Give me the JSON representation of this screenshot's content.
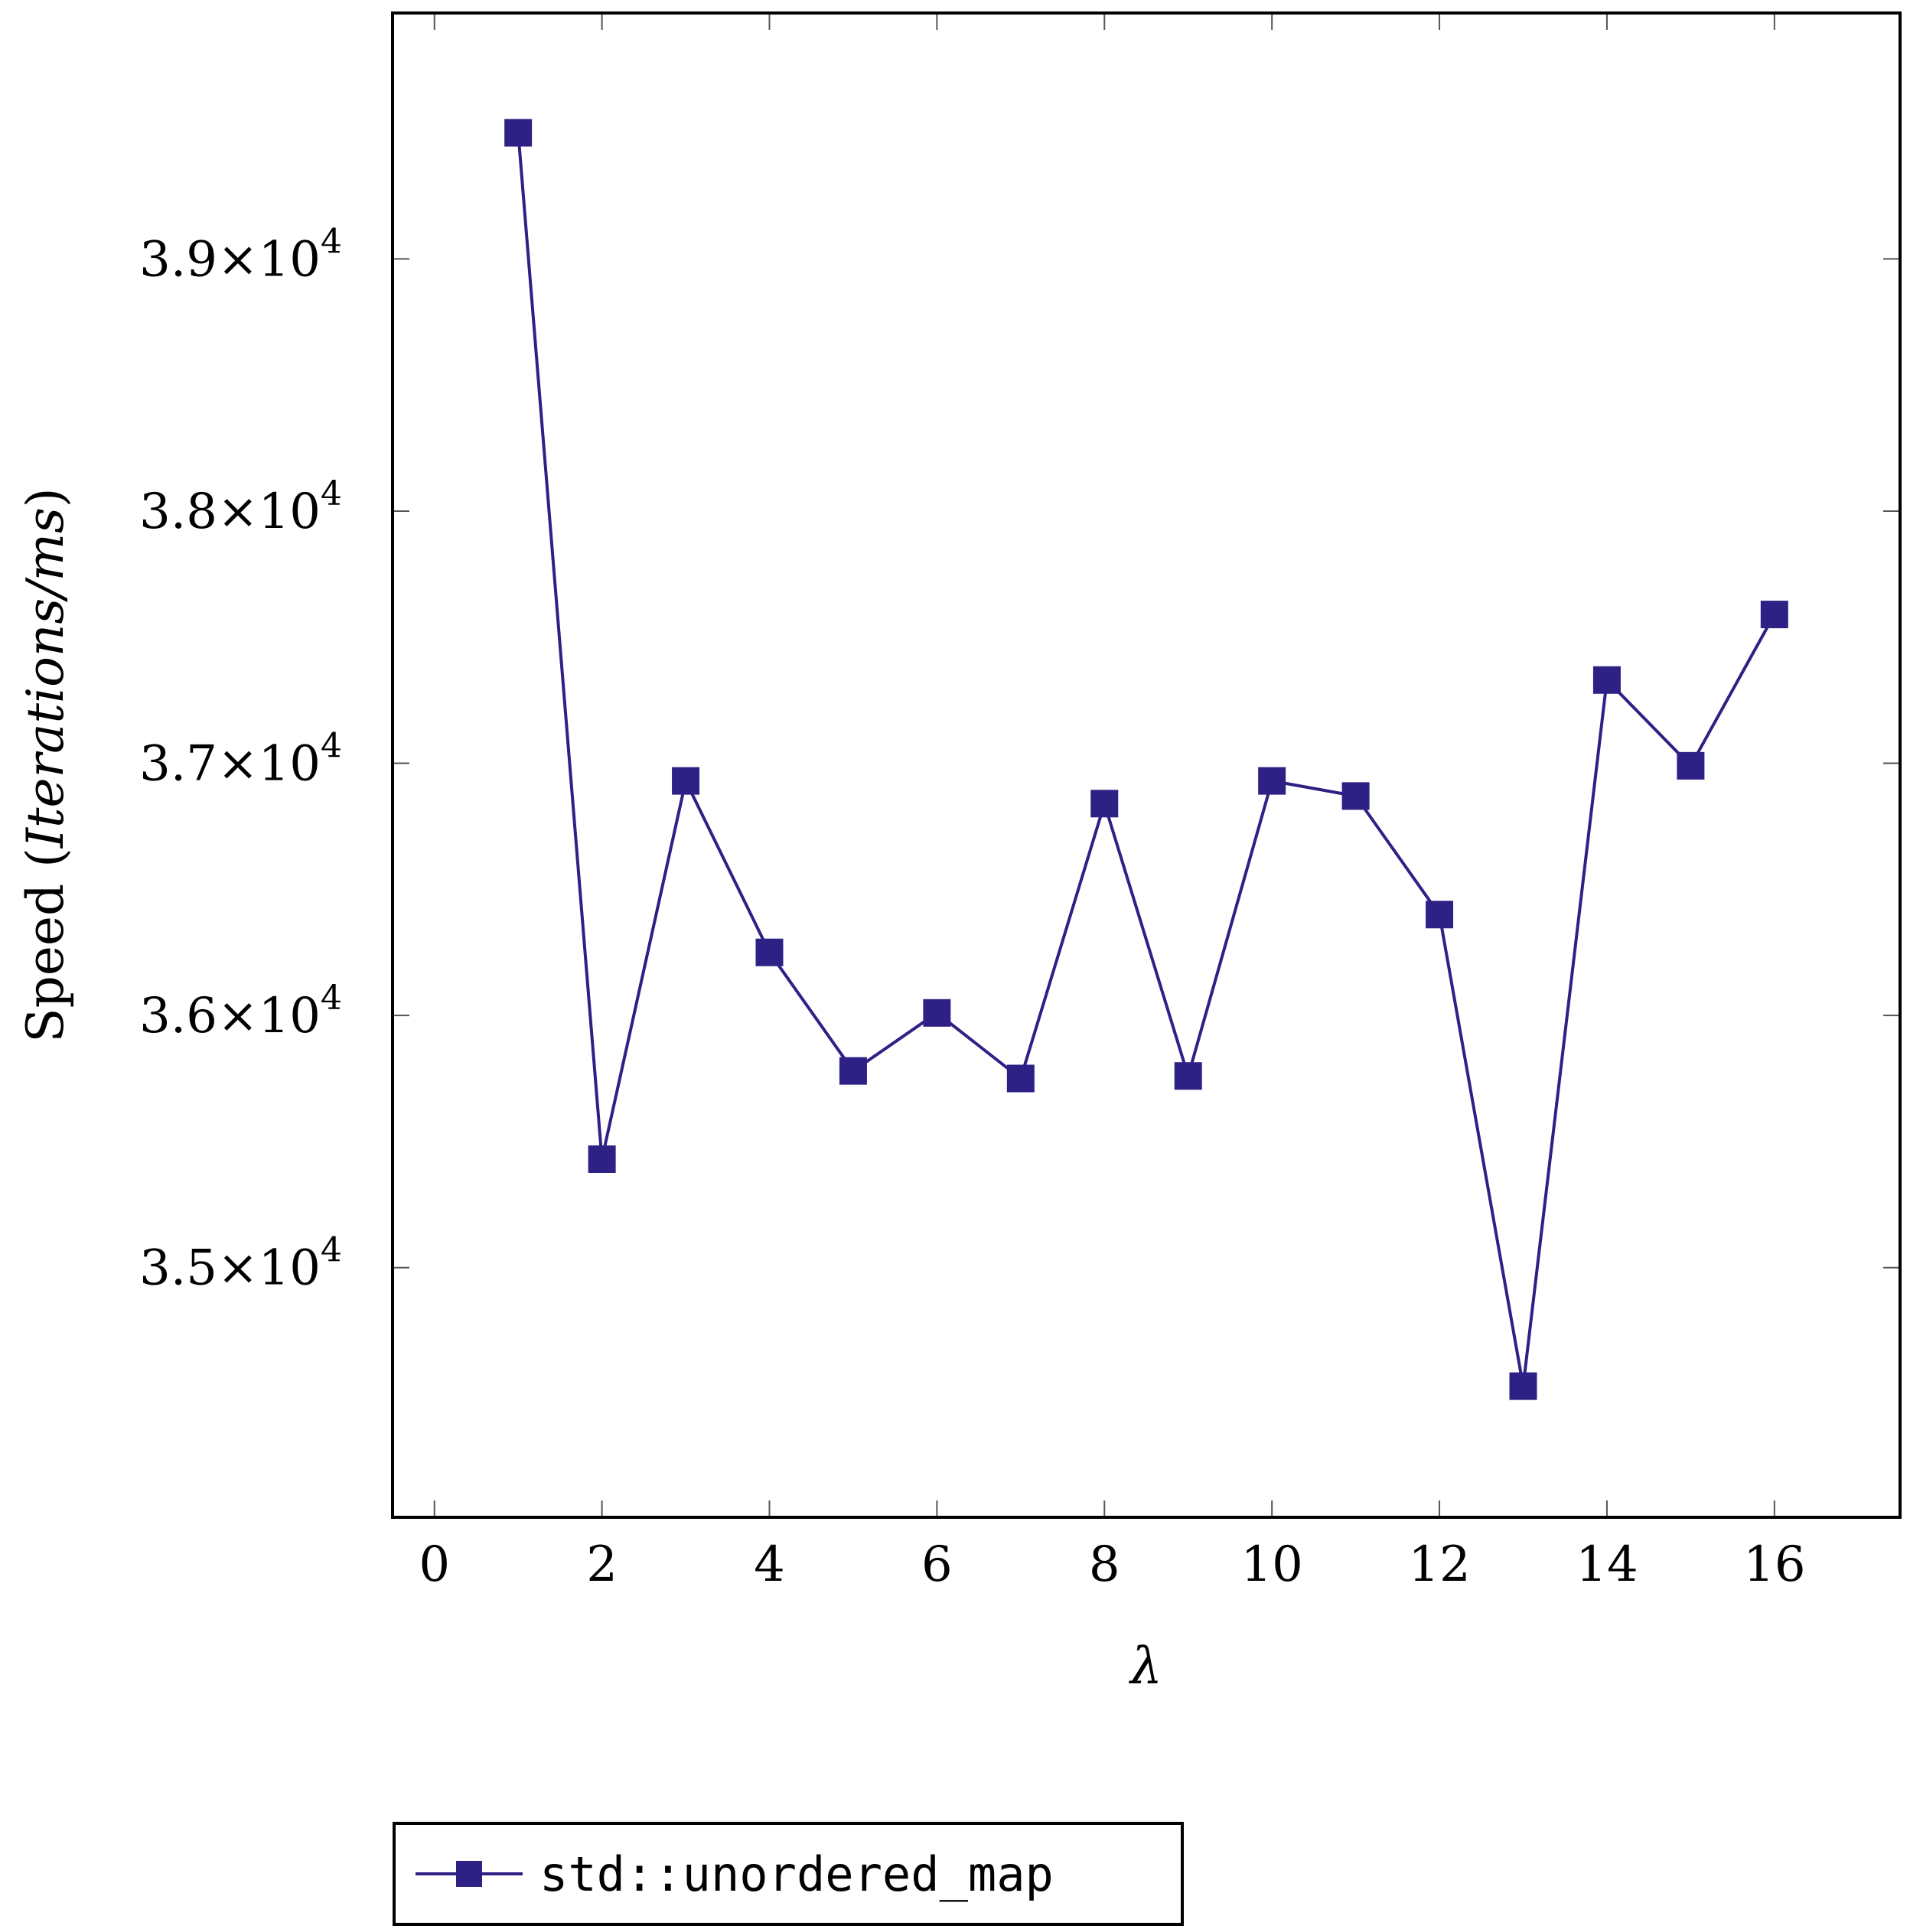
{
  "chart_data": {
    "type": "line",
    "x": [
      1,
      2,
      3,
      4,
      5,
      6,
      7,
      8,
      9,
      10,
      11,
      12,
      13,
      14,
      15,
      16
    ],
    "series": [
      {
        "name": "std::unordered_map",
        "marker": "square",
        "color": "#2e2185",
        "values": [
          39500,
          35430,
          36930,
          36250,
          35780,
          36010,
          35750,
          36840,
          35760,
          36930,
          36870,
          36400,
          34530,
          37330,
          36990,
          37590
        ]
      }
    ],
    "xlabel": "λ",
    "ylabel_prefix": "Speed (",
    "ylabel_italic": "Iterations/ms",
    "ylabel_suffix": ")",
    "xlim": [
      -0.5,
      17.5
    ],
    "ylim": [
      34010,
      39975
    ],
    "x_ticks": [
      0,
      2,
      4,
      6,
      8,
      10,
      12,
      14,
      16
    ],
    "x_tick_labels": [
      "0",
      "2",
      "4",
      "6",
      "8",
      "10",
      "12",
      "14",
      "16"
    ],
    "y_ticks": [
      35000,
      36000,
      37000,
      38000,
      39000
    ],
    "y_tick_mantissas": [
      "3.5",
      "3.6",
      "3.7",
      "3.8",
      "3.9"
    ],
    "y_tick_multiplier": "×10",
    "y_tick_exponent": "4",
    "grid": false,
    "legend_position": "below"
  }
}
